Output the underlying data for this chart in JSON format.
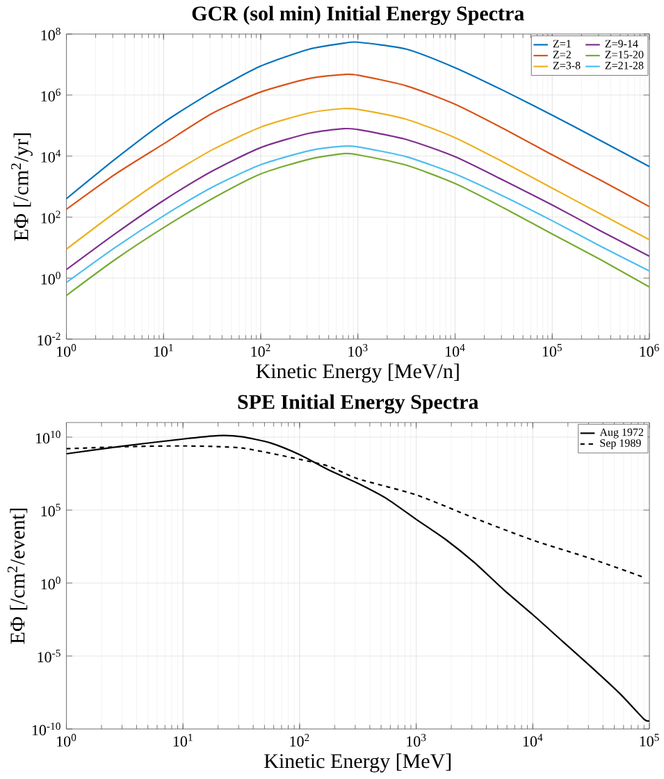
{
  "chart_data": [
    {
      "type": "line",
      "title": "GCR (sol min) Initial Energy Spectra",
      "xlabel": "Kinetic Energy [MeV/n]",
      "ylabel": "EΦ [/cm$^{2}$/yr]",
      "log": "xy",
      "grid": true,
      "legend": "top right",
      "xlim": [
        1,
        1000000
      ],
      "ylim": [
        0.01,
        100000000
      ],
      "xticks": [
        {
          "value": 1,
          "label": "10$^{0}$"
        },
        {
          "value": 10,
          "label": "10$^{1}$"
        },
        {
          "value": 100,
          "label": "10$^{2}$"
        },
        {
          "value": 1000,
          "label": "10$^{3}$"
        },
        {
          "value": 10000,
          "label": "10$^{4}$"
        },
        {
          "value": 100000,
          "label": "10$^{5}$"
        },
        {
          "value": 1000000,
          "label": "10$^{6}$"
        }
      ],
      "yticks": [
        {
          "value": 0.01,
          "label": "10$^{-2}$"
        },
        {
          "value": 1,
          "label": "10$^{0}$"
        },
        {
          "value": 100,
          "label": "10$^{2}$"
        },
        {
          "value": 10000,
          "label": "10$^{4}$"
        },
        {
          "value": 1000000,
          "label": "10$^{6}$"
        },
        {
          "value": 100000000,
          "label": "10$^{8}$"
        }
      ],
      "x": [
        1,
        3.16,
        10,
        31.6,
        100,
        316,
        708,
        1000,
        3160,
        10000,
        31600,
        100000,
        316000,
        1000000
      ],
      "series": [
        {
          "name": "Z=1",
          "color": "#0072bd",
          "values": [
            400,
            7900,
            126000,
            1260000,
            8900000,
            32000000,
            50000000,
            54000000,
            32000000,
            7900000,
            1400000,
            220000,
            32000,
            4500
          ]
        },
        {
          "name": "Z=2",
          "color": "#d95319",
          "values": [
            180,
            2500,
            25000,
            250000,
            1260000,
            3500000,
            4700000,
            4500000,
            2000000,
            500000,
            79000,
            11000,
            1600,
            220
          ]
        },
        {
          "name": "Z=3-8",
          "color": "#edb120",
          "values": [
            8.9,
            140,
            1800,
            16000,
            89000,
            260000,
            360000,
            340000,
            160000,
            40000,
            6300,
            890,
            126,
            18
          ]
        },
        {
          "name": "Z=9-14",
          "color": "#7e2f8e",
          "values": [
            1.9,
            28,
            350,
            3200,
            19000,
            56000,
            79000,
            74000,
            35000,
            9500,
            1600,
            250,
            35,
            5.2
          ]
        },
        {
          "name": "Z=15-20",
          "color": "#77ac30",
          "values": [
            0.27,
            4,
            45,
            400,
            2600,
            7900,
            12000,
            11000,
            5000,
            1260,
            200,
            28,
            4,
            0.51
          ]
        },
        {
          "name": "Z=21-28",
          "color": "#4dbeee",
          "values": [
            0.72,
            10,
            110,
            950,
            5200,
            15000,
            21000,
            20000,
            9500,
            2600,
            480,
            76,
            11,
            1.7
          ]
        }
      ]
    },
    {
      "type": "line",
      "title": "SPE Initial Energy Spectra",
      "xlabel": "Kinetic Energy [MeV]",
      "ylabel": "EΦ [/cm$^{2}$/event]",
      "log": "xy",
      "grid": true,
      "legend": "top right",
      "xlim": [
        1,
        100000
      ],
      "ylim": [
        1e-10,
        100000000000.0
      ],
      "xticks": [
        {
          "value": 1,
          "label": "10$^{0}$"
        },
        {
          "value": 10,
          "label": "10$^{1}$"
        },
        {
          "value": 100,
          "label": "10$^{2}$"
        },
        {
          "value": 1000,
          "label": "10$^{3}$"
        },
        {
          "value": 10000,
          "label": "10$^{4}$"
        },
        {
          "value": 100000,
          "label": "10$^{5}$"
        }
      ],
      "yticks": [
        {
          "value": 1e-10,
          "label": "10$^{-10}$"
        },
        {
          "value": 1e-05,
          "label": "10$^{-5}$"
        },
        {
          "value": 1,
          "label": "10$^{0}$"
        },
        {
          "value": 100000,
          "label": "10$^{5}$"
        },
        {
          "value": 10000000000,
          "label": "10$^{10}$"
        }
      ],
      "series": [
        {
          "name": "Aug 1972",
          "color": "#000000",
          "line_style": "solid",
          "x": [
            1,
            3.16,
            10,
            20,
            31.6,
            56.2,
            100,
            178,
            316,
            562,
            1000,
            1778,
            3162,
            5623,
            10000,
            17783,
            31623,
            56234,
            89125,
            100000
          ],
          "values": [
            720000000,
            2500000000,
            7400000000,
            12600000000,
            10700000000,
            4000000000,
            630000000,
            56000000,
            6800000,
            590000,
            23000,
            1000,
            25,
            0.35,
            0.0068,
            0.00011,
            1.8e-06,
            2.5e-08,
            5e-10,
            3.6e-10
          ]
        },
        {
          "name": "Sep 1989",
          "color": "#000000",
          "line_style": "dashed",
          "x": [
            1,
            3.16,
            10,
            31.6,
            100,
            178,
            316,
            1000,
            3162,
            10000,
            31623,
            89125
          ],
          "values": [
            1600000000,
            2200000000,
            2500000000,
            1800000000,
            300000000,
            100000000,
            14000000,
            1100000,
            28000,
            870,
            47,
            2.5
          ]
        }
      ]
    }
  ]
}
